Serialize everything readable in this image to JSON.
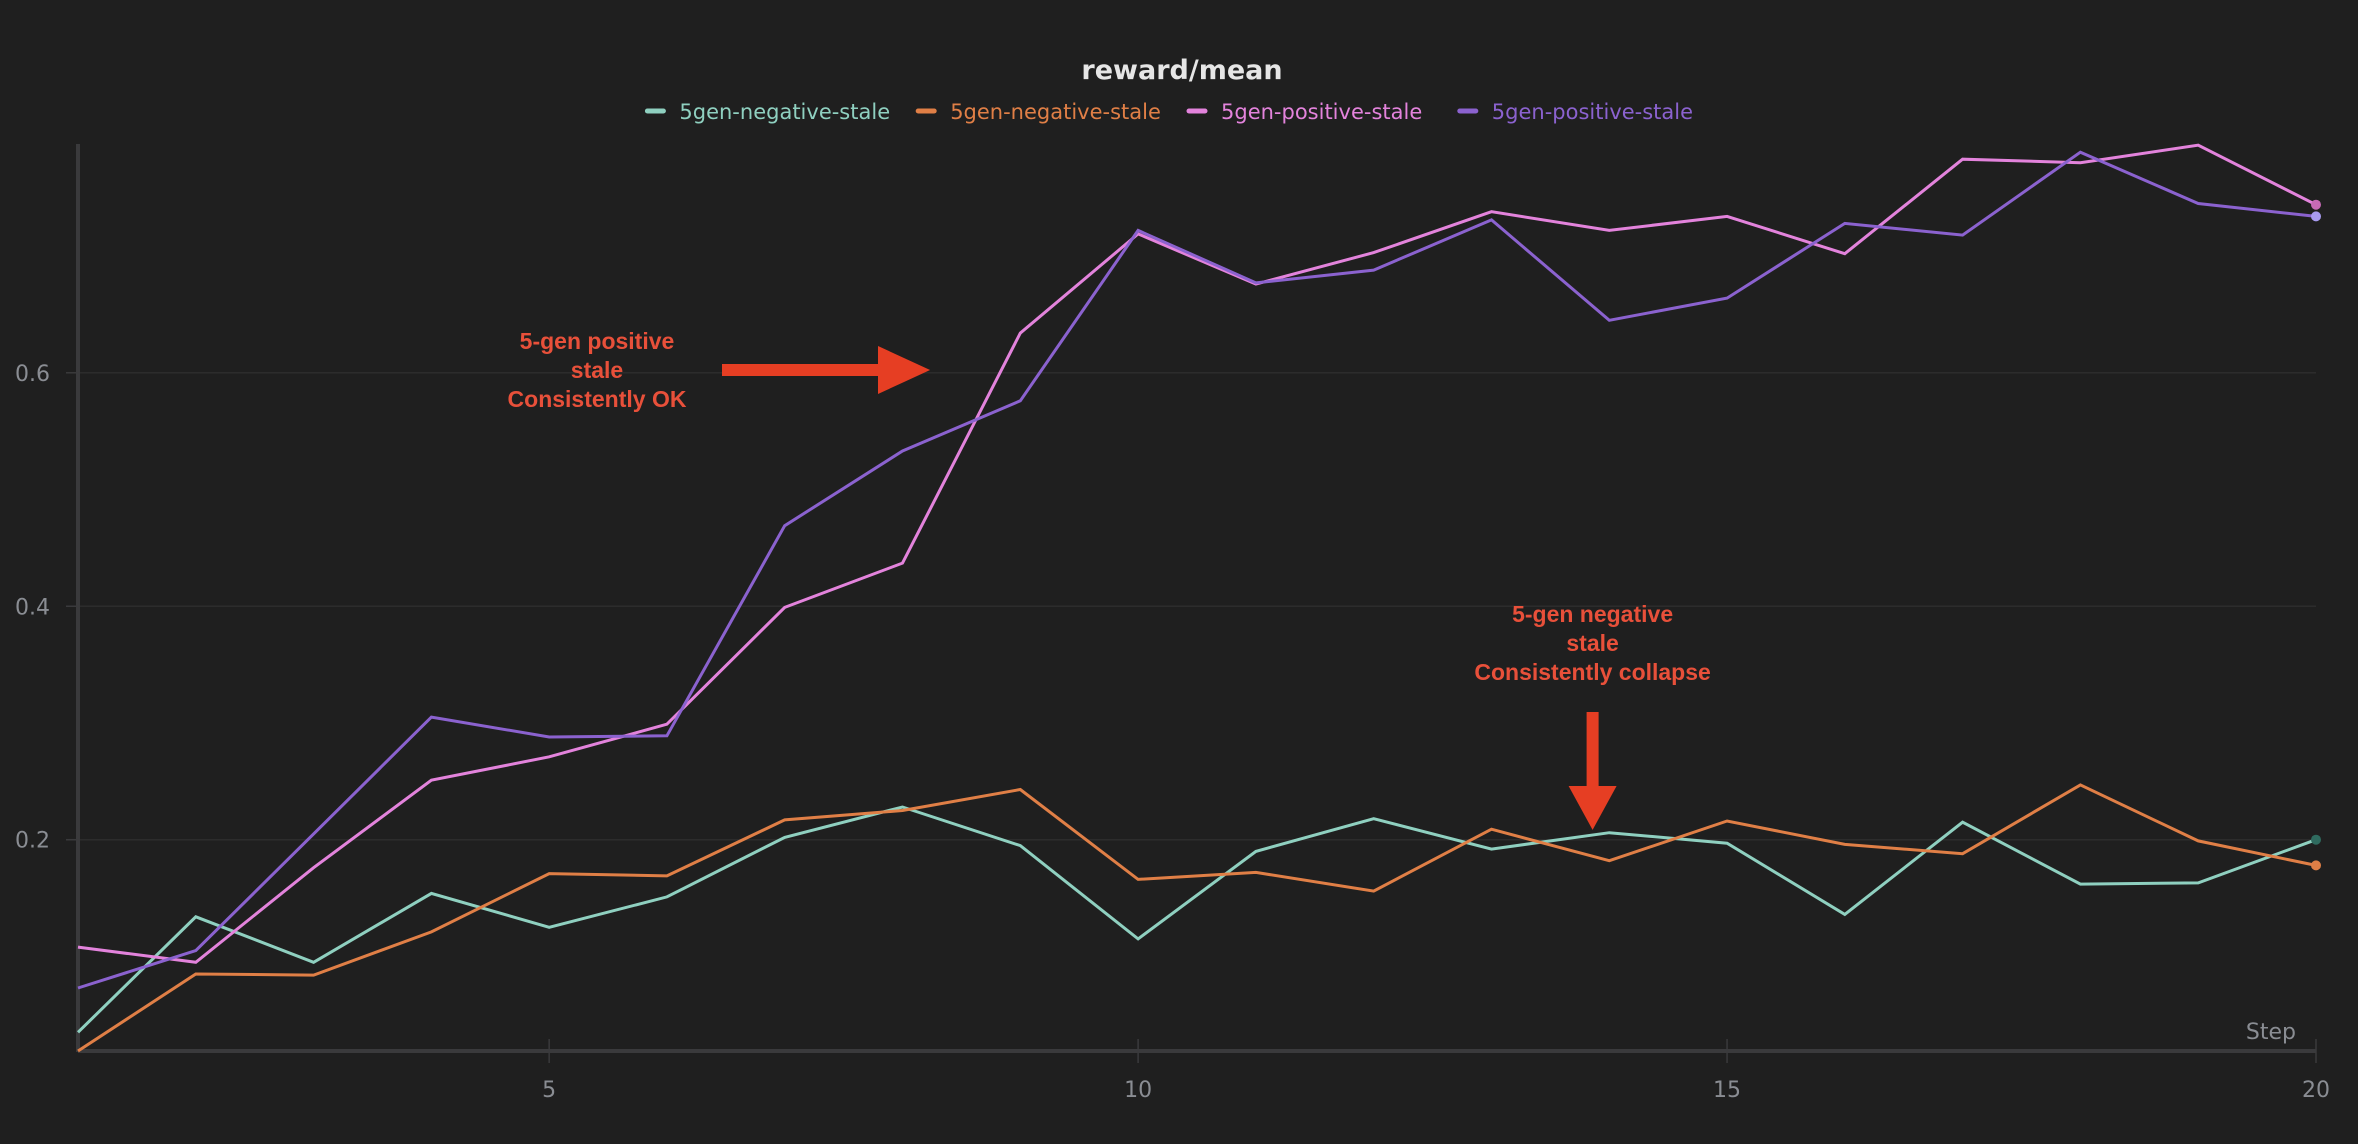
{
  "chart_data": {
    "type": "line",
    "title": "reward/mean",
    "xlabel": "Step",
    "ylabel": "",
    "xlim": [
      1,
      20
    ],
    "ylim": [
      0.019,
      0.796
    ],
    "x_ticks": [
      5,
      10,
      15,
      20
    ],
    "y_ticks": [
      0.2,
      0.4,
      0.6
    ],
    "y_tick_labels": [
      "0.2",
      "0.4",
      "0.6"
    ],
    "x_tick_labels": [
      "5",
      "10",
      "15",
      "20"
    ],
    "grid": "horizontal",
    "legend_position": "top-center",
    "x": [
      1,
      2,
      3,
      4,
      5,
      6,
      7,
      8,
      9,
      10,
      11,
      12,
      13,
      14,
      15,
      16,
      17,
      18,
      19,
      20
    ],
    "series": [
      {
        "name": "5gen-negative-stale",
        "color": "#8fd0c0",
        "end_dot_color": "#2f6b5f",
        "values": [
          0.035,
          0.134,
          0.095,
          0.154,
          0.125,
          0.151,
          0.202,
          0.228,
          0.195,
          0.115,
          0.19,
          0.218,
          0.192,
          0.206,
          0.197,
          0.136,
          0.215,
          0.162,
          0.163,
          0.2
        ]
      },
      {
        "name": "5gen-negative-stale",
        "color": "#e07f46",
        "end_dot_color": "#e07f46",
        "values": [
          0.019,
          0.085,
          0.084,
          0.121,
          0.171,
          0.169,
          0.217,
          0.225,
          0.243,
          0.166,
          0.172,
          0.156,
          0.209,
          0.182,
          0.216,
          0.196,
          0.188,
          0.247,
          0.199,
          0.178
        ]
      },
      {
        "name": "5gen-positive-stale",
        "color": "#e383dc",
        "end_dot_color": "#c76ab5",
        "values": [
          0.108,
          0.095,
          0.176,
          0.251,
          0.271,
          0.299,
          0.399,
          0.437,
          0.634,
          0.719,
          0.676,
          0.703,
          0.738,
          0.722,
          0.734,
          0.702,
          0.783,
          0.78,
          0.795,
          0.744
        ]
      },
      {
        "name": "5gen-positive-stale",
        "color": "#8b62cf",
        "end_dot_color": "#a89bf0",
        "values": [
          0.073,
          0.105,
          0.205,
          0.305,
          0.288,
          0.289,
          0.469,
          0.533,
          0.576,
          0.722,
          0.677,
          0.688,
          0.731,
          0.645,
          0.664,
          0.728,
          0.718,
          0.789,
          0.745,
          0.734
        ]
      }
    ],
    "annotations": [
      {
        "lines": [
          "5-gen positive",
          "stale",
          "Consistently OK"
        ],
        "arrow": "right",
        "target_step": 8.2,
        "target_value": 0.6,
        "color": "#e8503a",
        "arrow_color": "#e63e23"
      },
      {
        "lines": [
          "5-gen negative",
          "stale",
          "Consistently collapse"
        ],
        "arrow": "down",
        "target_step": 13.85,
        "target_value": 0.205,
        "color": "#e8503a",
        "arrow_color": "#e63e23"
      }
    ]
  },
  "colors": {
    "background": "#1f1f1f",
    "axis": "#3a3a3c",
    "grid": "#2c2c2c",
    "tick_text": "#8a8d93",
    "title_text": "#e6e6e6"
  }
}
